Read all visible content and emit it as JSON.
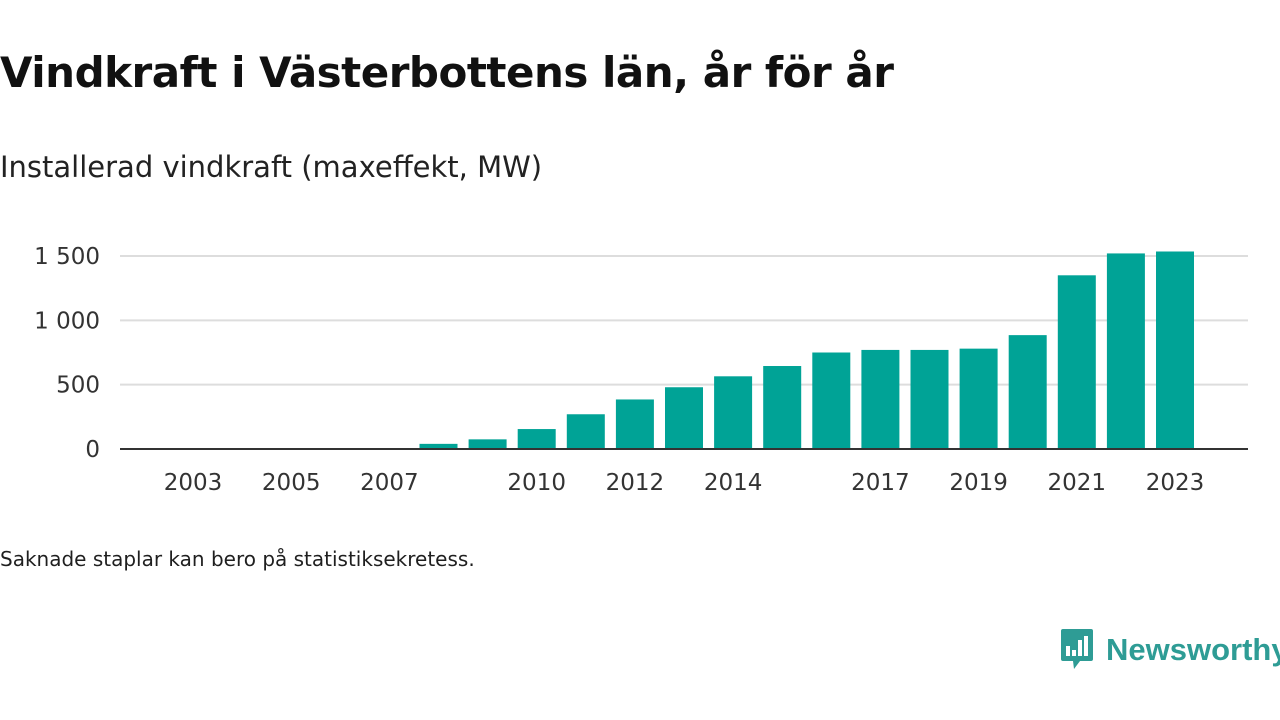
{
  "title": "Vindkraft i Västerbottens län, år för år",
  "subtitle": "Installerad vindkraft (maxeffekt, MW)",
  "footnote": "Saknade staplar kan bero på statistiksekretess.",
  "logo": {
    "text": "Newsworthy",
    "icon": "newsworthy-bar-chart-speech-bubble-icon",
    "color": "#2e9c95"
  },
  "chart_data": {
    "type": "bar",
    "categories": [
      "2003",
      "2004",
      "2005",
      "2006",
      "2007",
      "2008",
      "2009",
      "2010",
      "2011",
      "2012",
      "2013",
      "2014",
      "2015",
      "2016",
      "2017",
      "2018",
      "2019",
      "2020",
      "2021",
      "2022",
      "2023"
    ],
    "values": [
      0,
      0,
      0,
      0,
      0,
      40,
      75,
      155,
      270,
      385,
      480,
      565,
      645,
      750,
      770,
      770,
      780,
      885,
      1350,
      1520,
      1535
    ],
    "x_tick_labels": [
      "2003",
      "2005",
      "2007",
      "2010",
      "2012",
      "2014",
      "2017",
      "2019",
      "2021",
      "2023"
    ],
    "y_ticks": [
      0,
      500,
      1000,
      1500
    ],
    "y_tick_labels": [
      "0",
      "500",
      "1 000",
      "1 500"
    ],
    "ylim": [
      0,
      1600
    ],
    "xlabel": "",
    "ylabel": "",
    "grid": true,
    "bar_color": "#00a396",
    "grid_color": "#dddddd",
    "axis_color": "#333333"
  }
}
